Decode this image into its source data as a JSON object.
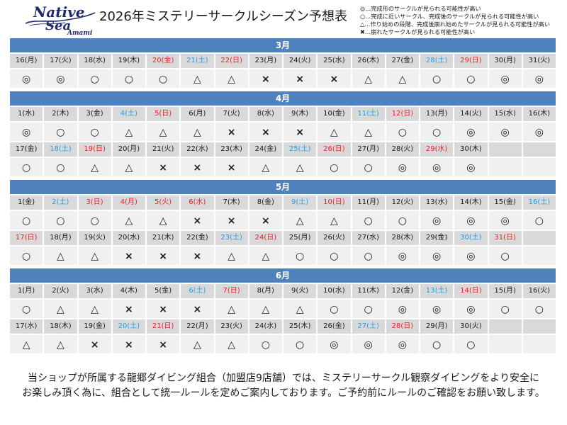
{
  "logo": {
    "line1": "Native",
    "line2": "Sea",
    "line3": "Amami"
  },
  "title": "2026年ミステリーサークルシーズン予想表",
  "legend_separator": "…",
  "legend": [
    {
      "symbol": "◎",
      "text": "完成形のサークルが見られる可能性が高い"
    },
    {
      "symbol": "○",
      "text": "完成に近いサークル、完成後のサークルが見られる可能性が高い"
    },
    {
      "symbol": "△",
      "text": "作り始めの段階、完成後崩れ始めたサークルが見られる可能性が高い"
    },
    {
      "symbol": "✖",
      "text": "崩れたサークルが見られる可能性が高い"
    }
  ],
  "colors": {
    "logo": "#1d2b6e",
    "month_bar": "#4f81bd",
    "month_bar_text": "#ffffff",
    "date_row_bg": "#d9d9d9",
    "mark_row_bg": "#f0f0f0",
    "saturday": "#1f9fe6",
    "sunday_holiday": "#ee2024",
    "text": "#1a1a1a"
  },
  "months": [
    {
      "label": "3月",
      "rows": [
        [
          {
            "date": "16(月)",
            "type": "weekday",
            "mark": "◎"
          },
          {
            "date": "17(火)",
            "type": "weekday",
            "mark": "◎"
          },
          {
            "date": "18(水)",
            "type": "weekday",
            "mark": "○"
          },
          {
            "date": "19(木)",
            "type": "weekday",
            "mark": "○"
          },
          {
            "date": "20(金)",
            "type": "holiday",
            "mark": "○"
          },
          {
            "date": "21(土)",
            "type": "saturday",
            "mark": "△"
          },
          {
            "date": "22(日)",
            "type": "sunday",
            "mark": "△"
          },
          {
            "date": "23(月)",
            "type": "weekday",
            "mark": "×"
          },
          {
            "date": "24(火)",
            "type": "weekday",
            "mark": "×"
          },
          {
            "date": "25(水)",
            "type": "weekday",
            "mark": "×"
          },
          {
            "date": "26(木)",
            "type": "weekday",
            "mark": "△"
          },
          {
            "date": "27(金)",
            "type": "weekday",
            "mark": "△"
          },
          {
            "date": "28(土)",
            "type": "saturday",
            "mark": "○"
          },
          {
            "date": "29(日)",
            "type": "sunday",
            "mark": "○"
          },
          {
            "date": "30(月)",
            "type": "weekday",
            "mark": "◎"
          },
          {
            "date": "31(火)",
            "type": "weekday",
            "mark": "◎"
          }
        ]
      ]
    },
    {
      "label": "4月",
      "rows": [
        [
          {
            "date": "1(水)",
            "type": "weekday",
            "mark": "◎"
          },
          {
            "date": "2(木)",
            "type": "weekday",
            "mark": "○"
          },
          {
            "date": "3(金)",
            "type": "weekday",
            "mark": "○"
          },
          {
            "date": "4(土)",
            "type": "saturday",
            "mark": "△"
          },
          {
            "date": "5(日)",
            "type": "sunday",
            "mark": "△"
          },
          {
            "date": "6(月)",
            "type": "weekday",
            "mark": "△"
          },
          {
            "date": "7(火)",
            "type": "weekday",
            "mark": "×"
          },
          {
            "date": "8(水)",
            "type": "weekday",
            "mark": "×"
          },
          {
            "date": "9(木)",
            "type": "weekday",
            "mark": "×"
          },
          {
            "date": "10(金)",
            "type": "weekday",
            "mark": "△"
          },
          {
            "date": "11(土)",
            "type": "saturday",
            "mark": "△"
          },
          {
            "date": "12(日)",
            "type": "sunday",
            "mark": "○"
          },
          {
            "date": "13(月)",
            "type": "weekday",
            "mark": "○"
          },
          {
            "date": "14(火)",
            "type": "weekday",
            "mark": "◎"
          },
          {
            "date": "15(水)",
            "type": "weekday",
            "mark": "◎"
          },
          {
            "date": "16(木)",
            "type": "weekday",
            "mark": "◎"
          }
        ],
        [
          {
            "date": "17(金)",
            "type": "weekday",
            "mark": "○"
          },
          {
            "date": "18(土)",
            "type": "saturday",
            "mark": "○"
          },
          {
            "date": "19(日)",
            "type": "sunday",
            "mark": "△"
          },
          {
            "date": "20(月)",
            "type": "weekday",
            "mark": "△"
          },
          {
            "date": "21(火)",
            "type": "weekday",
            "mark": "×"
          },
          {
            "date": "22(水)",
            "type": "weekday",
            "mark": "×"
          },
          {
            "date": "23(木)",
            "type": "weekday",
            "mark": "×"
          },
          {
            "date": "24(金)",
            "type": "weekday",
            "mark": "△"
          },
          {
            "date": "25(土)",
            "type": "saturday",
            "mark": "△"
          },
          {
            "date": "26(日)",
            "type": "sunday",
            "mark": "○"
          },
          {
            "date": "27(月)",
            "type": "weekday",
            "mark": "○"
          },
          {
            "date": "28(火)",
            "type": "weekday",
            "mark": "◎"
          },
          {
            "date": "29(水)",
            "type": "holiday",
            "mark": "◎"
          },
          {
            "date": "30(木)",
            "type": "weekday",
            "mark": "◎"
          }
        ]
      ]
    },
    {
      "label": "5月",
      "rows": [
        [
          {
            "date": "1(金)",
            "type": "weekday",
            "mark": "○"
          },
          {
            "date": "2(土)",
            "type": "saturday",
            "mark": "○"
          },
          {
            "date": "3(日)",
            "type": "sunday",
            "mark": "○"
          },
          {
            "date": "4(月)",
            "type": "holiday",
            "mark": "△"
          },
          {
            "date": "5(火)",
            "type": "holiday",
            "mark": "△"
          },
          {
            "date": "6(水)",
            "type": "holiday",
            "mark": "×"
          },
          {
            "date": "7(木)",
            "type": "weekday",
            "mark": "×"
          },
          {
            "date": "8(金)",
            "type": "weekday",
            "mark": "×"
          },
          {
            "date": "9(土)",
            "type": "saturday",
            "mark": "△"
          },
          {
            "date": "10(日)",
            "type": "sunday",
            "mark": "△"
          },
          {
            "date": "11(月)",
            "type": "weekday",
            "mark": "○"
          },
          {
            "date": "12(火)",
            "type": "weekday",
            "mark": "○"
          },
          {
            "date": "13(水)",
            "type": "weekday",
            "mark": "◎"
          },
          {
            "date": "14(木)",
            "type": "weekday",
            "mark": "◎"
          },
          {
            "date": "15(金)",
            "type": "weekday",
            "mark": "◎"
          },
          {
            "date": "16(土)",
            "type": "saturday",
            "mark": "○"
          }
        ],
        [
          {
            "date": "17(日)",
            "type": "sunday",
            "mark": "○"
          },
          {
            "date": "18(月)",
            "type": "weekday",
            "mark": "△"
          },
          {
            "date": "19(火)",
            "type": "weekday",
            "mark": "△"
          },
          {
            "date": "20(水)",
            "type": "weekday",
            "mark": "×"
          },
          {
            "date": "21(木)",
            "type": "weekday",
            "mark": "×"
          },
          {
            "date": "22(金)",
            "type": "weekday",
            "mark": "×"
          },
          {
            "date": "23(土)",
            "type": "saturday",
            "mark": "△"
          },
          {
            "date": "24(日)",
            "type": "sunday",
            "mark": "△"
          },
          {
            "date": "25(月)",
            "type": "weekday",
            "mark": "○"
          },
          {
            "date": "26(火)",
            "type": "weekday",
            "mark": "○"
          },
          {
            "date": "27(水)",
            "type": "weekday",
            "mark": "○"
          },
          {
            "date": "28(木)",
            "type": "weekday",
            "mark": "◎"
          },
          {
            "date": "29(金)",
            "type": "weekday",
            "mark": "◎"
          },
          {
            "date": "30(土)",
            "type": "saturday",
            "mark": "◎"
          },
          {
            "date": "31(日)",
            "type": "sunday",
            "mark": "○"
          }
        ]
      ]
    },
    {
      "label": "6月",
      "rows": [
        [
          {
            "date": "1(月)",
            "type": "weekday",
            "mark": "○"
          },
          {
            "date": "2(火)",
            "type": "weekday",
            "mark": "△"
          },
          {
            "date": "3(水)",
            "type": "weekday",
            "mark": "△"
          },
          {
            "date": "4(木)",
            "type": "weekday",
            "mark": "×"
          },
          {
            "date": "5(金)",
            "type": "weekday",
            "mark": "×"
          },
          {
            "date": "6(土)",
            "type": "saturday",
            "mark": "×"
          },
          {
            "date": "7(日)",
            "type": "sunday",
            "mark": "△"
          },
          {
            "date": "8(月)",
            "type": "weekday",
            "mark": "△"
          },
          {
            "date": "9(火)",
            "type": "weekday",
            "mark": "△"
          },
          {
            "date": "10(水)",
            "type": "weekday",
            "mark": "○"
          },
          {
            "date": "11(木)",
            "type": "weekday",
            "mark": "○"
          },
          {
            "date": "12(金)",
            "type": "weekday",
            "mark": "◎"
          },
          {
            "date": "13(土)",
            "type": "saturday",
            "mark": "◎"
          },
          {
            "date": "14(日)",
            "type": "sunday",
            "mark": "◎"
          },
          {
            "date": "15(月)",
            "type": "weekday",
            "mark": "○"
          },
          {
            "date": "16(火)",
            "type": "weekday",
            "mark": "○"
          }
        ],
        [
          {
            "date": "17(水)",
            "type": "weekday",
            "mark": "△"
          },
          {
            "date": "18(木)",
            "type": "weekday",
            "mark": "△"
          },
          {
            "date": "19(金)",
            "type": "weekday",
            "mark": "×"
          },
          {
            "date": "20(土)",
            "type": "saturday",
            "mark": "×"
          },
          {
            "date": "21(日)",
            "type": "sunday",
            "mark": "×"
          },
          {
            "date": "22(月)",
            "type": "weekday",
            "mark": "△"
          },
          {
            "date": "23(火)",
            "type": "weekday",
            "mark": "△"
          },
          {
            "date": "24(水)",
            "type": "weekday",
            "mark": "○"
          },
          {
            "date": "25(木)",
            "type": "weekday",
            "mark": "○"
          },
          {
            "date": "26(金)",
            "type": "weekday",
            "mark": "◎"
          },
          {
            "date": "27(土)",
            "type": "saturday",
            "mark": "◎"
          },
          {
            "date": "28(日)",
            "type": "sunday",
            "mark": "◎"
          },
          {
            "date": "29(月)",
            "type": "weekday",
            "mark": "○"
          },
          {
            "date": "30(火)",
            "type": "weekday",
            "mark": "○"
          }
        ]
      ]
    }
  ],
  "footer": {
    "line1": "当ショップが所属する龍郷ダイビング組合（加盟店9店舗）では、ミステリーサークル観察ダイビングをより安全に",
    "line2": "お楽しみ頂く為に、組合として統一ルールを定めご案内しております。ご予約前にルールのご確認をお願い致します。"
  }
}
